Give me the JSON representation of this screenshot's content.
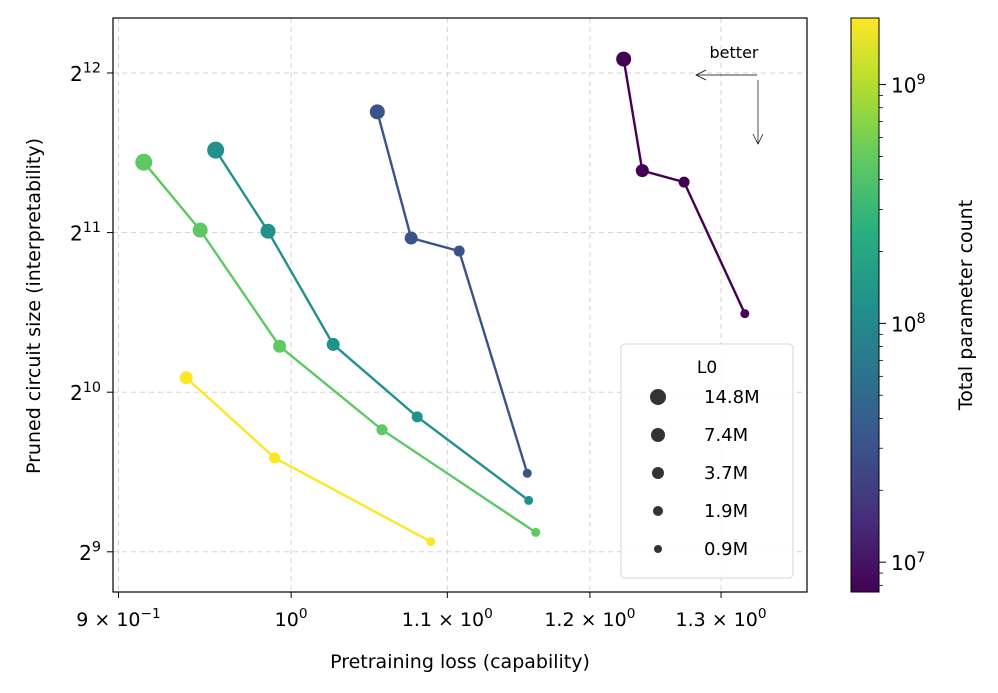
{
  "chart_data": {
    "type": "scatter",
    "xlabel": "Pretraining loss (capability)",
    "ylabel": "Pruned circuit size (interpretability)",
    "xscale": "log",
    "yscale": "log2",
    "xlim": [
      0.897,
      1.37
    ],
    "ylim": [
      430,
      5200
    ],
    "x_ticks": [
      {
        "value": 0.9,
        "label": "9 × 10",
        "sup": "−1"
      },
      {
        "value": 1.0,
        "label": "10",
        "sup": "0"
      },
      {
        "value": 1.1,
        "label": "1.1 × 10",
        "sup": "0"
      },
      {
        "value": 1.2,
        "label": "1.2 × 10",
        "sup": "0"
      },
      {
        "value": 1.3,
        "label": "1.3 × 10",
        "sup": "0"
      }
    ],
    "y_ticks": [
      {
        "value": 512,
        "label": "2",
        "sup": "9"
      },
      {
        "value": 1024,
        "label": "2",
        "sup": "10"
      },
      {
        "value": 2048,
        "label": "2",
        "sup": "11"
      },
      {
        "value": 4096,
        "label": "2",
        "sup": "12"
      }
    ],
    "grid": true,
    "annotation": {
      "text": "better"
    },
    "legend": {
      "title": "L0",
      "location": "lower-right",
      "entries": [
        {
          "label": "14.8M",
          "marker_size": 8
        },
        {
          "label": "7.4M",
          "marker_size": 7
        },
        {
          "label": "3.7M",
          "marker_size": 6
        },
        {
          "label": "1.9M",
          "marker_size": 5
        },
        {
          "label": "0.9M",
          "marker_size": 4
        }
      ]
    },
    "colorbar": {
      "label": "Total parameter count",
      "scale": "log",
      "range": [
        7500000,
        1900000000
      ],
      "ticks": [
        {
          "value": 10000000,
          "label": "10",
          "sup": "7"
        },
        {
          "value": 100000000,
          "label": "10",
          "sup": "8"
        },
        {
          "value": 1000000000,
          "label": "10",
          "sup": "9"
        }
      ]
    },
    "series": [
      {
        "name": "~8M params",
        "color": "#440154",
        "points": [
          [
            1.225,
            4350
          ],
          [
            1.239,
            2680
          ],
          [
            1.271,
            2550
          ],
          [
            1.319,
            1440
          ]
        ]
      },
      {
        "name": "~30M params",
        "color": "#3b528b",
        "points": [
          [
            1.054,
            3460
          ],
          [
            1.076,
            2000
          ],
          [
            1.108,
            1890
          ],
          [
            1.155,
            720
          ]
        ]
      },
      {
        "name": "~120M params",
        "color": "#21918c",
        "points": [
          [
            0.955,
            2930
          ],
          [
            0.986,
            2060
          ],
          [
            1.026,
            1260
          ],
          [
            1.08,
            920
          ],
          [
            1.156,
            640
          ]
        ]
      },
      {
        "name": "~600M params",
        "color": "#5ec962",
        "points": [
          [
            0.914,
            2780
          ],
          [
            0.946,
            2070
          ],
          [
            0.993,
            1250
          ],
          [
            1.057,
            870
          ],
          [
            1.161,
            557
          ]
        ]
      },
      {
        "name": "~1.8B params",
        "color": "#fde725",
        "points": [
          [
            0.938,
            1090
          ],
          [
            0.99,
            770
          ],
          [
            1.089,
            535
          ]
        ]
      }
    ]
  }
}
